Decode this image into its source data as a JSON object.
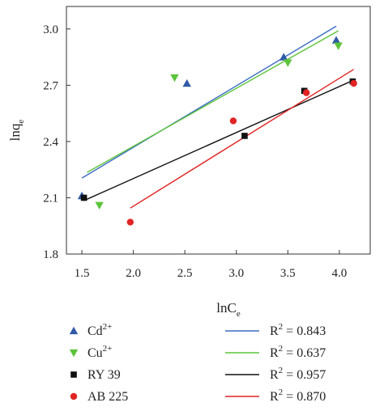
{
  "chart_data": {
    "type": "scatter",
    "xlabel": "lnC",
    "xlabel_sub": "e",
    "ylabel": "lnq",
    "ylabel_sub": "e",
    "xlim": [
      1.35,
      4.3
    ],
    "ylim": [
      1.8,
      3.12
    ],
    "xticks": [
      1.5,
      2.0,
      2.5,
      3.0,
      3.5,
      4.0
    ],
    "yticks": [
      1.8,
      2.1,
      2.4,
      2.7,
      3.0
    ],
    "xtick_labels": [
      "1.5",
      "2.0",
      "2.5",
      "3.0",
      "3.5",
      "4.0"
    ],
    "ytick_labels": [
      "1.8",
      "2.1",
      "2.4",
      "2.7",
      "3.0"
    ],
    "grid": false,
    "legend_position": "bottom",
    "series": [
      {
        "name": "Cd",
        "name_sup": "2+",
        "marker": "triangle-up",
        "color": "#2f5aa8",
        "points": [
          [
            1.5,
            2.11
          ],
          [
            2.52,
            2.71
          ],
          [
            3.46,
            2.85
          ],
          [
            3.97,
            2.94
          ]
        ],
        "fit": {
          "x": [
            1.5,
            3.97
          ],
          "y": [
            2.205,
            3.015
          ],
          "color": "#3a6bc4",
          "r2_label": "R",
          "r2_sup": "2",
          "r2_value": " = 0.843"
        }
      },
      {
        "name": "Cu",
        "name_sup": "2+",
        "marker": "triangle-down",
        "color": "#5cc43a",
        "points": [
          [
            1.67,
            2.06
          ],
          [
            2.4,
            2.74
          ],
          [
            3.5,
            2.82
          ],
          [
            3.99,
            2.91
          ]
        ],
        "fit": {
          "x": [
            1.55,
            3.99
          ],
          "y": [
            2.235,
            2.99
          ],
          "color": "#5cc43a",
          "r2_label": "R",
          "r2_sup": "2",
          "r2_value": " = 0.637"
        }
      },
      {
        "name": "RY 39",
        "name_sup": "",
        "marker": "square",
        "color": "#111111",
        "points": [
          [
            1.52,
            2.1
          ],
          [
            3.08,
            2.43
          ],
          [
            3.66,
            2.67
          ],
          [
            4.13,
            2.72
          ]
        ],
        "fit": {
          "x": [
            1.52,
            4.13
          ],
          "y": [
            2.085,
            2.725
          ],
          "color": "#111111",
          "r2_label": "R",
          "r2_sup": "2",
          "r2_value": " = 0.957"
        }
      },
      {
        "name": "AB 225",
        "name_sup": "",
        "marker": "circle",
        "color": "#e02424",
        "points": [
          [
            1.97,
            1.97
          ],
          [
            2.97,
            2.51
          ],
          [
            3.68,
            2.66
          ],
          [
            4.14,
            2.71
          ]
        ],
        "fit": {
          "x": [
            1.97,
            4.14
          ],
          "y": [
            2.045,
            2.785
          ],
          "color": "#e02424",
          "r2_label": "R",
          "r2_sup": "2",
          "r2_value": " = 0.870"
        }
      }
    ]
  }
}
